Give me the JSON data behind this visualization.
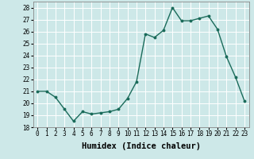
{
  "x": [
    0,
    1,
    2,
    3,
    4,
    5,
    6,
    7,
    8,
    9,
    10,
    11,
    12,
    13,
    14,
    15,
    16,
    17,
    18,
    19,
    20,
    21,
    22,
    23
  ],
  "y": [
    21.0,
    21.0,
    20.5,
    19.5,
    18.5,
    19.3,
    19.1,
    19.2,
    19.3,
    19.5,
    20.4,
    21.8,
    25.8,
    25.5,
    26.1,
    28.0,
    26.9,
    26.9,
    27.1,
    27.3,
    26.2,
    23.9,
    22.2,
    20.2
  ],
  "line_color": "#1a6b5a",
  "marker": "o",
  "marker_size": 1.8,
  "line_width": 1.0,
  "xlabel": "Humidex (Indice chaleur)",
  "xlim": [
    -0.5,
    23.5
  ],
  "ylim": [
    18,
    28.5
  ],
  "yticks": [
    18,
    19,
    20,
    21,
    22,
    23,
    24,
    25,
    26,
    27,
    28
  ],
  "xticks": [
    0,
    1,
    2,
    3,
    4,
    5,
    6,
    7,
    8,
    9,
    10,
    11,
    12,
    13,
    14,
    15,
    16,
    17,
    18,
    19,
    20,
    21,
    22,
    23
  ],
  "xtick_labels": [
    "0",
    "1",
    "2",
    "3",
    "4",
    "5",
    "6",
    "7",
    "8",
    "9",
    "10",
    "11",
    "12",
    "13",
    "14",
    "15",
    "16",
    "17",
    "18",
    "19",
    "20",
    "21",
    "22",
    "23"
  ],
  "bg_color": "#cde8e8",
  "grid_color": "#ffffff",
  "tick_label_fontsize": 5.5,
  "xlabel_fontsize": 7.5
}
